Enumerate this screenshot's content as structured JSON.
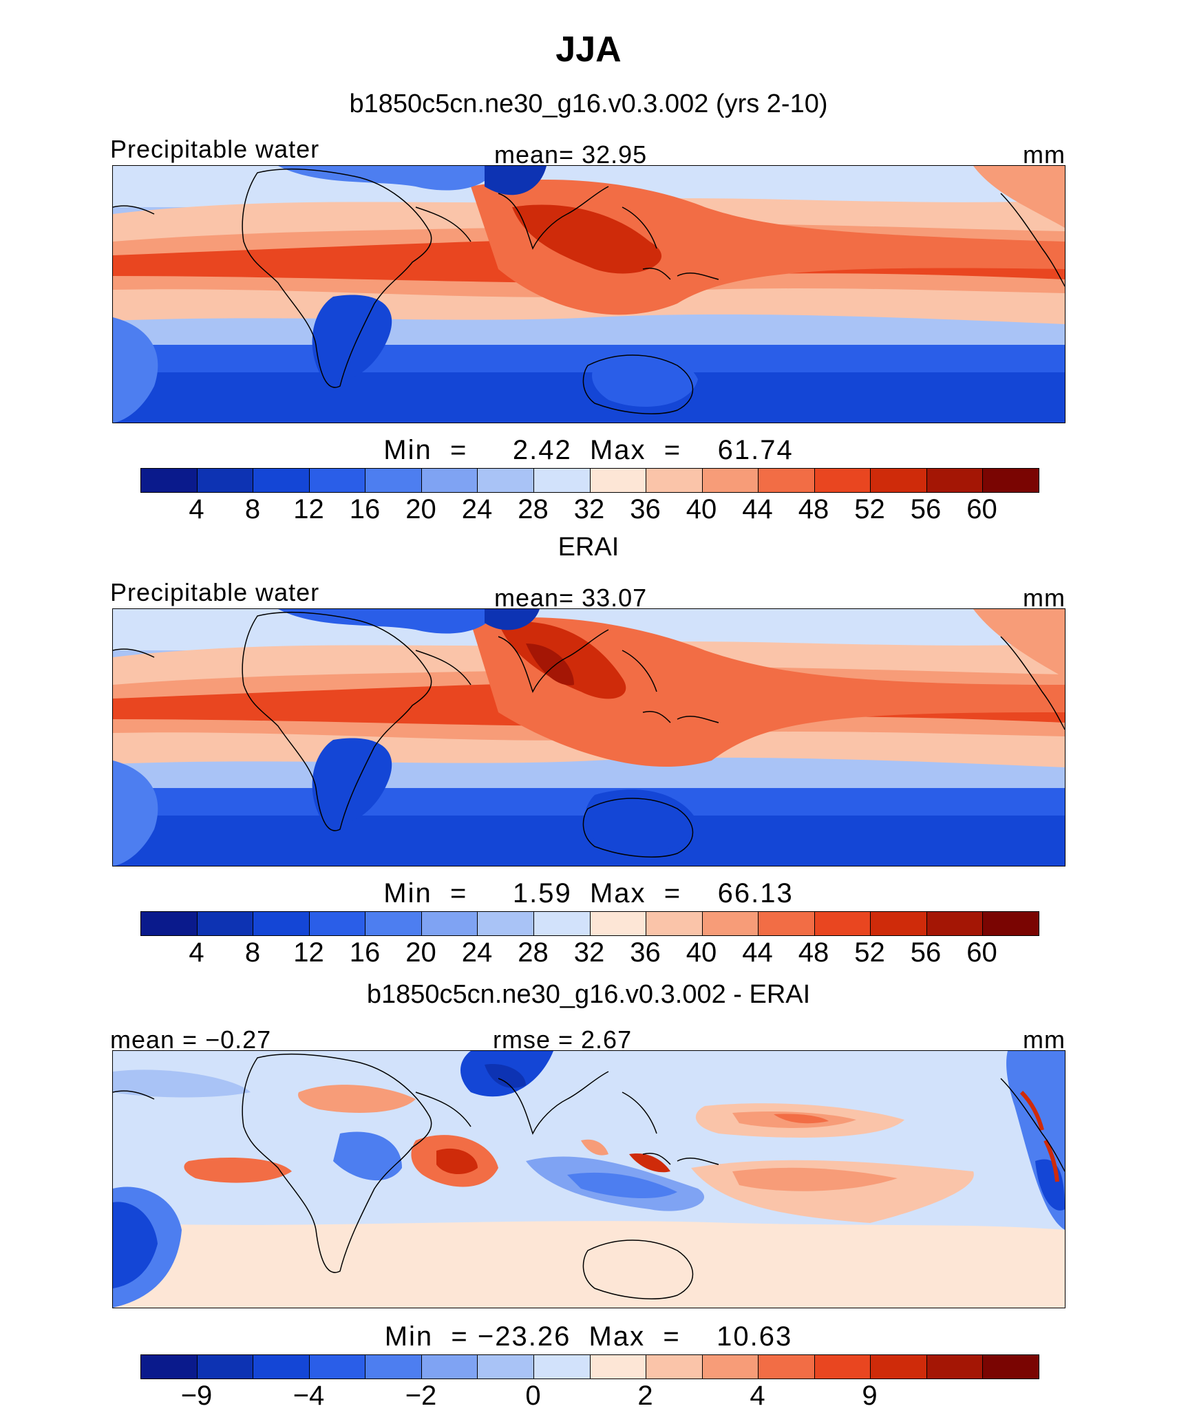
{
  "figure": {
    "title": "JJA"
  },
  "panels": [
    {
      "title": "b1850c5cn.ne30_g16.v0.3.002 (yrs 2-10)",
      "variable": "Precipitable water",
      "center_label": "mean=   32.95",
      "units": "mm",
      "min_max": "Min  =     2.42  Max  =    61.74",
      "colorbar_ticks": [
        "4",
        "8",
        "12",
        "16",
        "20",
        "24",
        "28",
        "32",
        "36",
        "40",
        "44",
        "48",
        "52",
        "56",
        "60"
      ]
    },
    {
      "title": "ERAI",
      "variable": "Precipitable water",
      "center_label": "mean=   33.07",
      "units": "mm",
      "min_max": "Min  =     1.59  Max  =    66.13",
      "colorbar_ticks": [
        "4",
        "8",
        "12",
        "16",
        "20",
        "24",
        "28",
        "32",
        "36",
        "40",
        "44",
        "48",
        "52",
        "56",
        "60"
      ]
    },
    {
      "title": "b1850c5cn.ne30_g16.v0.3.002 - ERAI",
      "variable": "mean =   −0.27",
      "center_label": "rmse =    2.67",
      "units": "mm",
      "min_max": "Min  = −23.26  Max  =    10.63",
      "colorbar_ticks": [
        "−9",
        "−4",
        "−2",
        "0",
        "2",
        "4",
        "9"
      ]
    }
  ],
  "colors": {
    "abs_scale": [
      "#0a1a8c",
      "#0d33b3",
      "#1446d6",
      "#2a5ee8",
      "#4d7ef0",
      "#7fa3f3",
      "#a9c3f6",
      "#d2e2fb",
      "#fde6d6",
      "#fac4a9",
      "#f79c78",
      "#f26d45",
      "#e94620",
      "#cf2b0a",
      "#a41605",
      "#7a0502"
    ],
    "diff_scale": [
      "#0a1a8c",
      "#0d33b3",
      "#1446d6",
      "#2a5ee8",
      "#4d7ef0",
      "#7fa3f3",
      "#a9c3f6",
      "#d2e2fb",
      "#fde6d6",
      "#fac4a9",
      "#f79c78",
      "#f26d45",
      "#e94620",
      "#cf2b0a",
      "#a41605",
      "#7a0502"
    ]
  }
}
